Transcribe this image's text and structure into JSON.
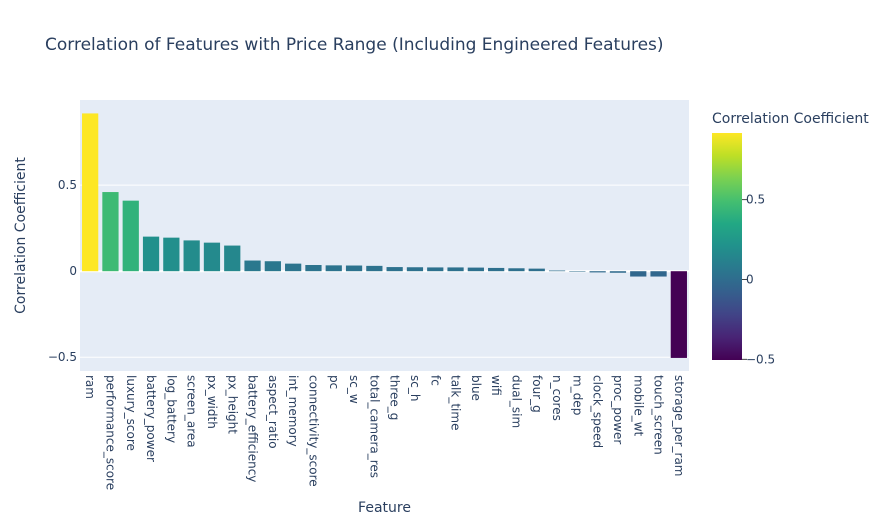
{
  "chart_data": {
    "type": "bar",
    "title": "Correlation of Features with Price Range (Including Engineered Features)",
    "xlabel": "Feature",
    "ylabel": "Correlation Coefficient",
    "ylim": [
      -0.58,
      0.995
    ],
    "grid": true,
    "yticks": [
      -0.5,
      0,
      0.5
    ],
    "ytick_labels": [
      "−0.5",
      "0",
      "0.5"
    ],
    "categories": [
      "ram",
      "performance_score",
      "luxury_score",
      "battery_power",
      "log_battery",
      "screen_area",
      "px_width",
      "px_height",
      "battery_efficiency",
      "aspect_ratio",
      "int_memory",
      "connectivity_score",
      "pc",
      "sc_w",
      "total_camera_res",
      "three_g",
      "sc_h",
      "fc",
      "talk_time",
      "blue",
      "wifi",
      "dual_sim",
      "four_g",
      "n_cores",
      "m_dep",
      "clock_speed",
      "proc_power",
      "mobile_wt",
      "touch_screen",
      "storage_per_ram"
    ],
    "values": [
      0.917,
      0.46,
      0.41,
      0.201,
      0.195,
      0.179,
      0.166,
      0.149,
      0.062,
      0.058,
      0.044,
      0.036,
      0.034,
      0.033,
      0.031,
      0.024,
      0.023,
      0.022,
      0.022,
      0.021,
      0.019,
      0.017,
      0.015,
      0.004,
      0.0009,
      -0.007,
      -0.009,
      -0.031,
      -0.031,
      -0.504
    ],
    "colorbar": {
      "title": "Correlation Coefficient",
      "range": [
        -0.504,
        0.917
      ],
      "ticks": [
        -0.5,
        0,
        0.5
      ],
      "tick_labels": [
        "−0.5",
        "0",
        "0.5"
      ],
      "colorscale": "viridis"
    }
  }
}
